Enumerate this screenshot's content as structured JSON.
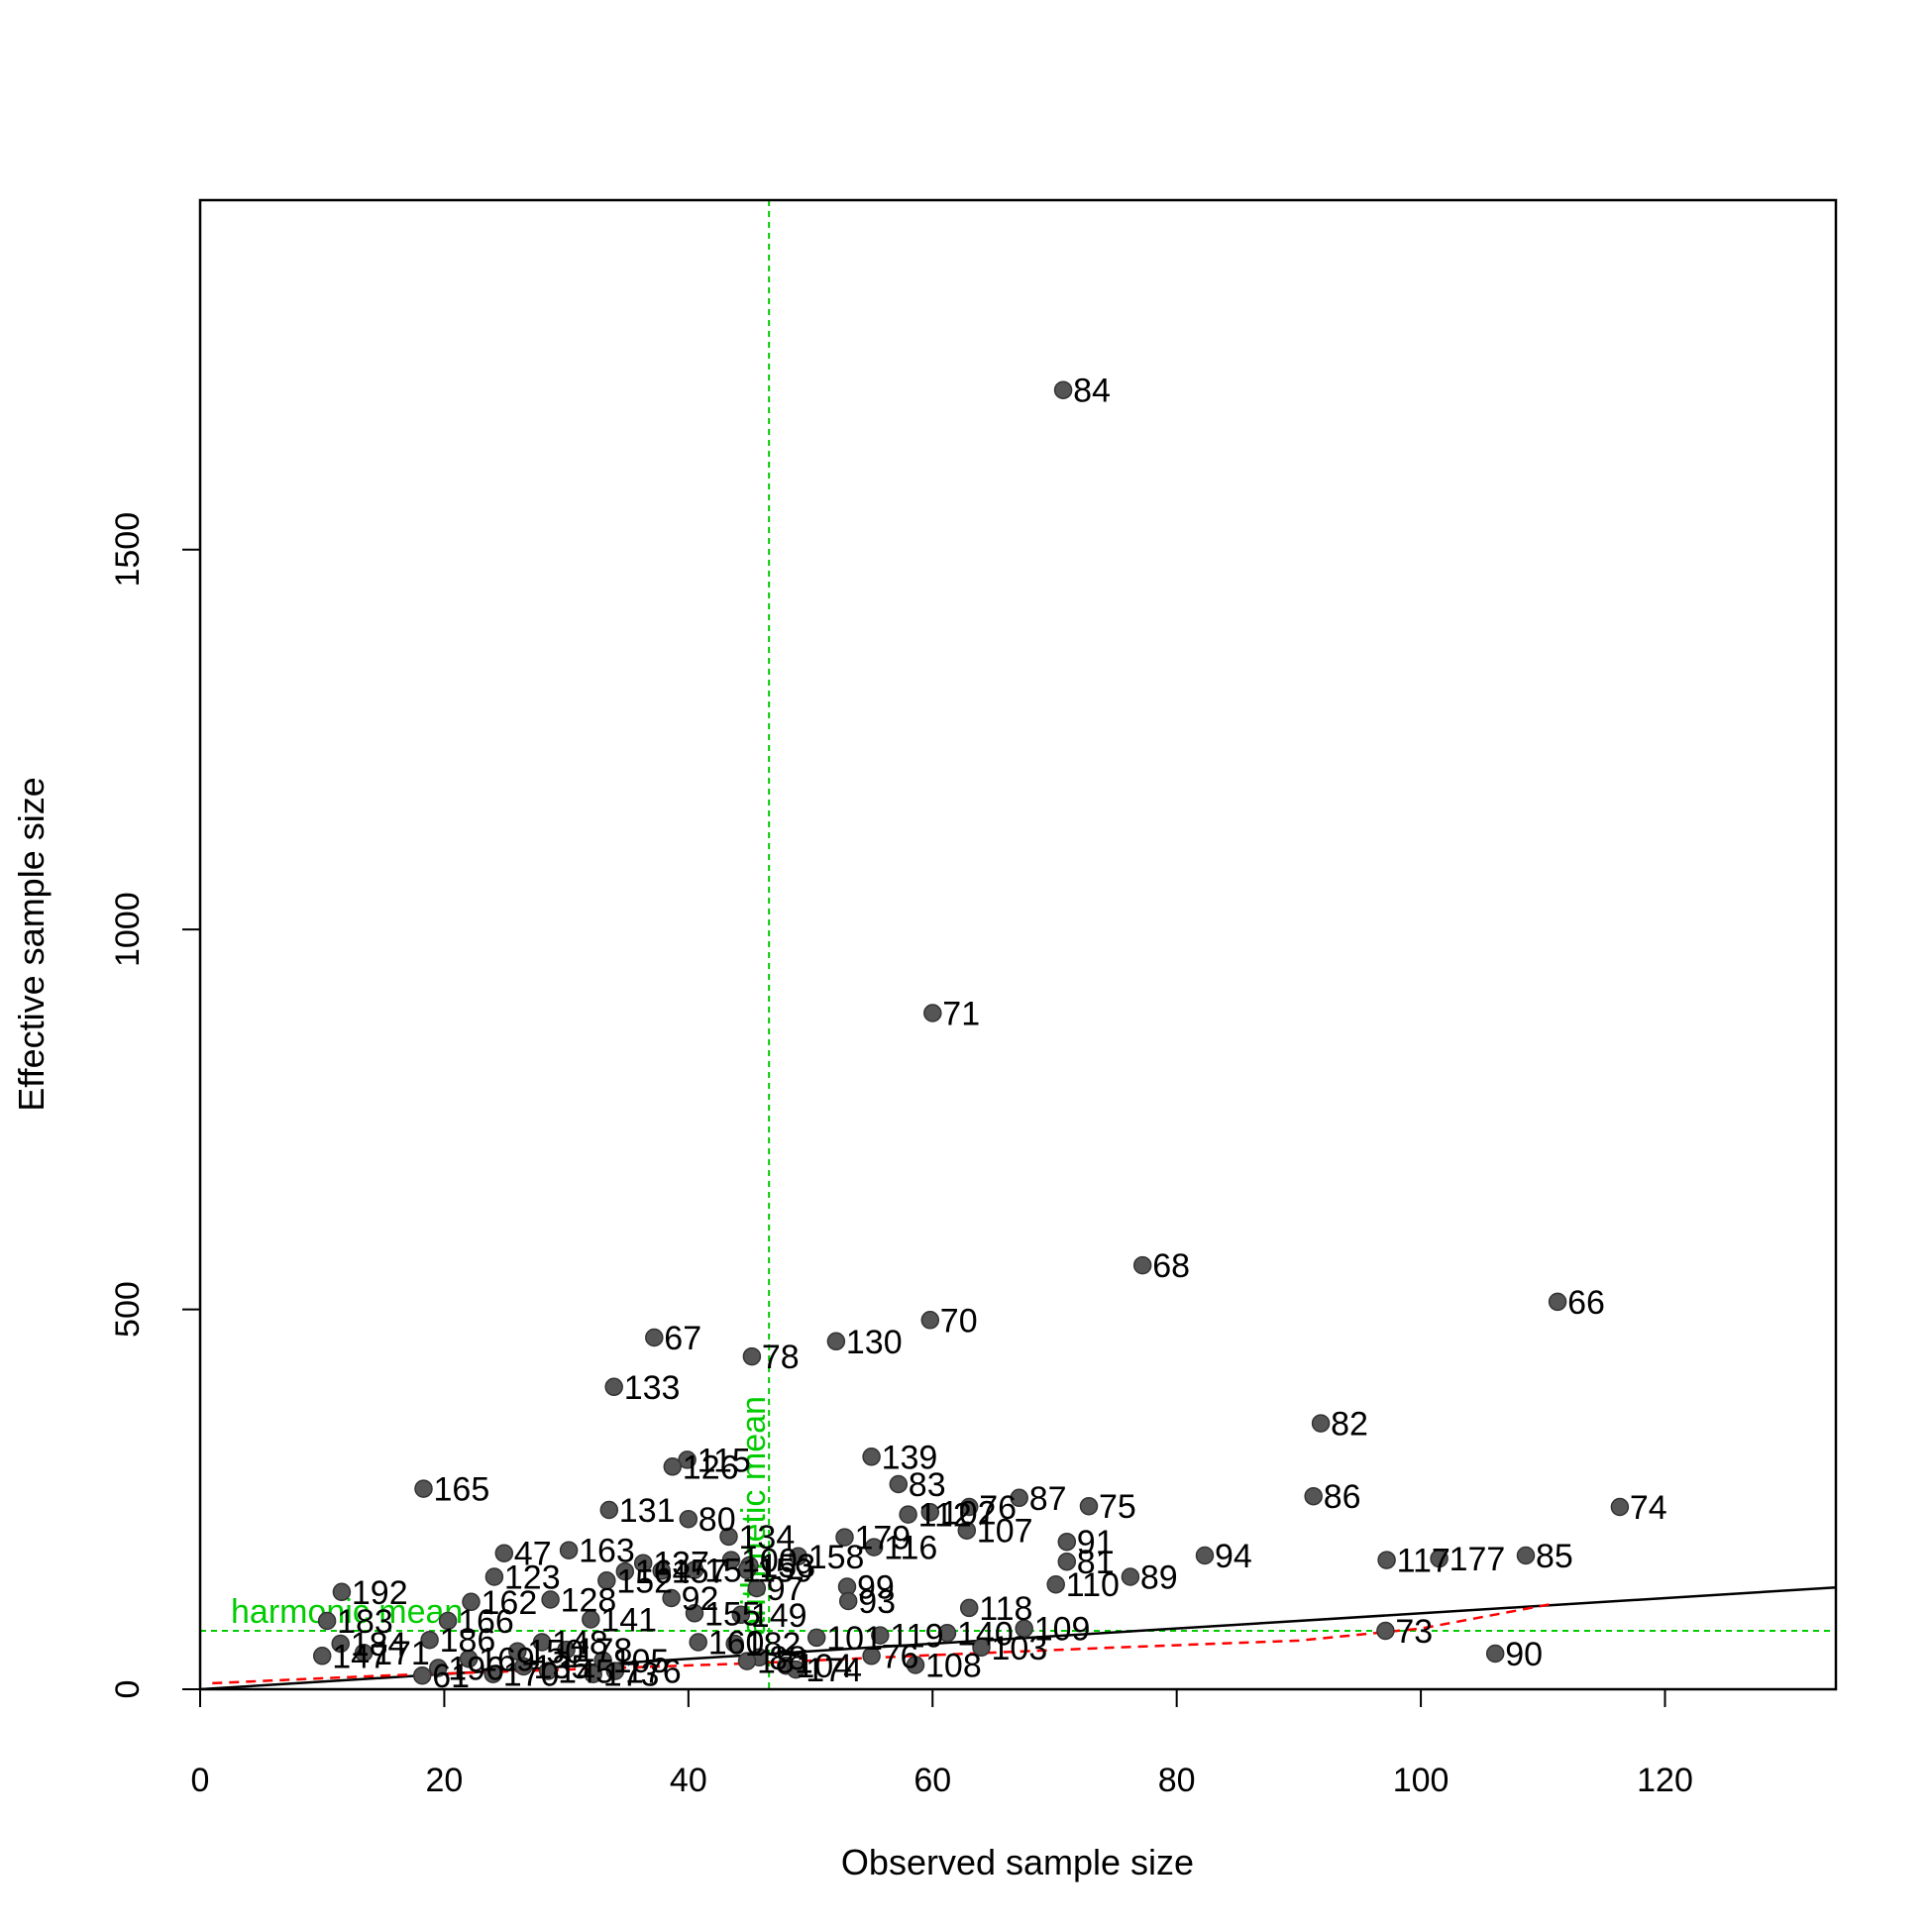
{
  "chart_data": {
    "type": "scatter",
    "title": "",
    "xlabel": "Observed sample size",
    "ylabel": "Effective sample size",
    "xlim": [
      0,
      134
    ],
    "ylim": [
      0,
      1960
    ],
    "xticks": [
      0,
      20,
      40,
      60,
      80,
      100,
      120
    ],
    "yticks": [
      0,
      500,
      1000,
      1500
    ],
    "grid": false,
    "point_color": "#555555",
    "reference_color": "#00cc00",
    "fit_line_color": "#ff0000",
    "reference_lines": {
      "arithmetic_mean": {
        "label": "arithmetic mean",
        "x": 46.6
      },
      "harmonic_mean": {
        "label": "harmonic mean",
        "y": 77
      }
    },
    "identity_line": {
      "x": [
        0,
        134
      ],
      "y": [
        0,
        134
      ]
    },
    "trend_line": {
      "x": [
        1,
        15,
        30,
        45,
        60,
        75,
        90,
        100,
        111
      ],
      "y": [
        8,
        18,
        26,
        34,
        45,
        55,
        64,
        80,
        113
      ]
    },
    "points": [
      {
        "id": "84",
        "x": 70.7,
        "y": 1710
      },
      {
        "id": "71",
        "x": 60.0,
        "y": 890
      },
      {
        "id": "68",
        "x": 77.2,
        "y": 558
      },
      {
        "id": "66",
        "x": 111.2,
        "y": 510
      },
      {
        "id": "70",
        "x": 59.8,
        "y": 486
      },
      {
        "id": "67",
        "x": 37.2,
        "y": 463
      },
      {
        "id": "130",
        "x": 52.1,
        "y": 458
      },
      {
        "id": "78",
        "x": 45.2,
        "y": 438
      },
      {
        "id": "133",
        "x": 33.9,
        "y": 398
      },
      {
        "id": "82",
        "x": 91.8,
        "y": 350
      },
      {
        "id": "139",
        "x": 55.0,
        "y": 306
      },
      {
        "id": "115",
        "x": 39.9,
        "y": 302
      },
      {
        "id": "126",
        "x": 38.7,
        "y": 293
      },
      {
        "id": "83",
        "x": 57.2,
        "y": 270
      },
      {
        "id": "165",
        "x": 18.3,
        "y": 264
      },
      {
        "id": "86",
        "x": 91.2,
        "y": 254
      },
      {
        "id": "87",
        "x": 67.1,
        "y": 252
      },
      {
        "id": "75",
        "x": 72.8,
        "y": 241
      },
      {
        "id": "74",
        "x": 116.3,
        "y": 240
      },
      {
        "id": "76",
        "x": 63.0,
        "y": 240
      },
      {
        "id": "131",
        "x": 33.5,
        "y": 236
      },
      {
        "id": "102",
        "x": 59.8,
        "y": 233
      },
      {
        "id": "112",
        "x": 58.0,
        "y": 230
      },
      {
        "id": "80",
        "x": 40.0,
        "y": 224
      },
      {
        "id": "107",
        "x": 62.8,
        "y": 209
      },
      {
        "id": "134",
        "x": 43.3,
        "y": 201
      },
      {
        "id": "179",
        "x": 52.8,
        "y": 200
      },
      {
        "id": "91",
        "x": 71.0,
        "y": 194
      },
      {
        "id": "116",
        "x": 55.2,
        "y": 187
      },
      {
        "id": "163",
        "x": 30.2,
        "y": 183
      },
      {
        "id": "47",
        "x": 24.9,
        "y": 179
      },
      {
        "id": "94",
        "x": 82.3,
        "y": 176
      },
      {
        "id": "85",
        "x": 108.6,
        "y": 176
      },
      {
        "id": "158",
        "x": 49.0,
        "y": 175
      },
      {
        "id": "177",
        "x": 101.5,
        "y": 172
      },
      {
        "id": "117",
        "x": 97.2,
        "y": 170
      },
      {
        "id": "100",
        "x": 43.5,
        "y": 170
      },
      {
        "id": "81",
        "x": 71.0,
        "y": 168
      },
      {
        "id": "137",
        "x": 36.3,
        "y": 166
      },
      {
        "id": "153",
        "x": 45.0,
        "y": 163
      },
      {
        "id": "159",
        "x": 44.8,
        "y": 157
      },
      {
        "id": "151",
        "x": 40.5,
        "y": 157
      },
      {
        "id": "157",
        "x": 37.8,
        "y": 156
      },
      {
        "id": "164",
        "x": 34.8,
        "y": 155
      },
      {
        "id": "123",
        "x": 24.1,
        "y": 148
      },
      {
        "id": "89",
        "x": 76.2,
        "y": 148
      },
      {
        "id": "152",
        "x": 33.3,
        "y": 143
      },
      {
        "id": "110",
        "x": 70.1,
        "y": 138
      },
      {
        "id": "99",
        "x": 53.0,
        "y": 135
      },
      {
        "id": "97",
        "x": 45.6,
        "y": 133
      },
      {
        "id": "192",
        "x": 11.6,
        "y": 128
      },
      {
        "id": "128",
        "x": 28.7,
        "y": 118
      },
      {
        "id": "162",
        "x": 22.2,
        "y": 115
      },
      {
        "id": "92",
        "x": 38.6,
        "y": 120
      },
      {
        "id": "93",
        "x": 53.1,
        "y": 116
      },
      {
        "id": "118",
        "x": 63.0,
        "y": 107
      },
      {
        "id": "155",
        "x": 40.5,
        "y": 100
      },
      {
        "id": "149",
        "x": 44.3,
        "y": 98
      },
      {
        "id": "141",
        "x": 32.0,
        "y": 92
      },
      {
        "id": "166",
        "x": 20.3,
        "y": 90
      },
      {
        "id": "183",
        "x": 10.4,
        "y": 90
      },
      {
        "id": "109",
        "x": 67.5,
        "y": 80
      },
      {
        "id": "73",
        "x": 97.1,
        "y": 77
      },
      {
        "id": "140",
        "x": 61.2,
        "y": 74
      },
      {
        "id": "119",
        "x": 55.7,
        "y": 71
      },
      {
        "id": "101",
        "x": 50.5,
        "y": 68
      },
      {
        "id": "186",
        "x": 18.8,
        "y": 65
      },
      {
        "id": "148",
        "x": 28.0,
        "y": 62
      },
      {
        "id": "160",
        "x": 40.8,
        "y": 62
      },
      {
        "id": "184",
        "x": 11.5,
        "y": 60
      },
      {
        "id": "182",
        "x": 43.8,
        "y": 60
      },
      {
        "id": "103",
        "x": 64.0,
        "y": 55
      },
      {
        "id": "178",
        "x": 30.0,
        "y": 52
      },
      {
        "id": "150",
        "x": 26.0,
        "y": 50
      },
      {
        "id": "171",
        "x": 13.4,
        "y": 48
      },
      {
        "id": "90",
        "x": 106.1,
        "y": 47
      },
      {
        "id": "76b",
        "x": 55.0,
        "y": 44
      },
      {
        "id": "147",
        "x": 10.0,
        "y": 44
      },
      {
        "id": "88",
        "x": 45.8,
        "y": 42
      },
      {
        "id": "169",
        "x": 22.0,
        "y": 40
      },
      {
        "id": "105",
        "x": 33.0,
        "y": 38
      },
      {
        "id": "181",
        "x": 44.8,
        "y": 37
      },
      {
        "id": "108",
        "x": 58.6,
        "y": 32
      },
      {
        "id": "104",
        "x": 48.0,
        "y": 31
      },
      {
        "id": "135",
        "x": 26.5,
        "y": 30
      },
      {
        "id": "196",
        "x": 19.5,
        "y": 28
      },
      {
        "id": "174",
        "x": 48.8,
        "y": 26
      },
      {
        "id": "176",
        "x": 34.0,
        "y": 24
      },
      {
        "id": "145",
        "x": 28.5,
        "y": 24
      },
      {
        "id": "173",
        "x": 32.2,
        "y": 20
      },
      {
        "id": "170",
        "x": 24.0,
        "y": 20
      },
      {
        "id": "61",
        "x": 18.2,
        "y": 18
      }
    ],
    "labels": [
      {
        "text": "84",
        "x": 70.7,
        "y": 1710
      },
      {
        "text": "71",
        "x": 60.0,
        "y": 890
      },
      {
        "text": "68",
        "x": 77.2,
        "y": 558
      },
      {
        "text": "66",
        "x": 111.2,
        "y": 510
      },
      {
        "text": "70",
        "x": 59.8,
        "y": 486
      },
      {
        "text": "67",
        "x": 37.2,
        "y": 463
      },
      {
        "text": "130",
        "x": 52.1,
        "y": 458
      },
      {
        "text": "78",
        "x": 45.2,
        "y": 438
      },
      {
        "text": "133",
        "x": 33.9,
        "y": 398
      },
      {
        "text": "82",
        "x": 91.8,
        "y": 350
      },
      {
        "text": "139",
        "x": 55.0,
        "y": 306
      },
      {
        "text": "115",
        "x": 39.9,
        "y": 302
      },
      {
        "text": "126",
        "x": 38.7,
        "y": 293
      },
      {
        "text": "83",
        "x": 57.2,
        "y": 270
      },
      {
        "text": "165",
        "x": 18.3,
        "y": 264
      },
      {
        "text": "86",
        "x": 91.2,
        "y": 254
      },
      {
        "text": "87",
        "x": 67.1,
        "y": 252
      },
      {
        "text": "75",
        "x": 72.8,
        "y": 241
      },
      {
        "text": "74",
        "x": 116.3,
        "y": 240
      },
      {
        "text": "76",
        "x": 63.0,
        "y": 240
      },
      {
        "text": "131",
        "x": 33.5,
        "y": 236
      },
      {
        "text": "102",
        "x": 59.8,
        "y": 233
      },
      {
        "text": "112",
        "x": 58.0,
        "y": 230
      },
      {
        "text": "80",
        "x": 40.0,
        "y": 224
      },
      {
        "text": "107",
        "x": 62.8,
        "y": 209
      },
      {
        "text": "134",
        "x": 43.3,
        "y": 201
      },
      {
        "text": "179",
        "x": 52.8,
        "y": 200
      },
      {
        "text": "91",
        "x": 71.0,
        "y": 194
      },
      {
        "text": "116",
        "x": 55.2,
        "y": 187
      },
      {
        "text": "163",
        "x": 30.2,
        "y": 183
      },
      {
        "text": "47",
        "x": 24.9,
        "y": 179
      },
      {
        "text": "94",
        "x": 82.3,
        "y": 176
      },
      {
        "text": "85",
        "x": 108.6,
        "y": 176
      },
      {
        "text": "158",
        "x": 49.0,
        "y": 175
      },
      {
        "text": "177",
        "x": 101.5,
        "y": 172
      },
      {
        "text": "117",
        "x": 97.2,
        "y": 170
      },
      {
        "text": "100",
        "x": 43.5,
        "y": 170
      },
      {
        "text": "81",
        "x": 71.0,
        "y": 168
      },
      {
        "text": "137",
        "x": 36.3,
        "y": 166
      },
      {
        "text": "153",
        "x": 45.0,
        "y": 163
      },
      {
        "text": "159",
        "x": 44.8,
        "y": 157
      },
      {
        "text": "151",
        "x": 40.5,
        "y": 157
      },
      {
        "text": "157",
        "x": 37.8,
        "y": 156
      },
      {
        "text": "164",
        "x": 34.8,
        "y": 155
      },
      {
        "text": "123",
        "x": 24.1,
        "y": 148
      },
      {
        "text": "89",
        "x": 76.2,
        "y": 148
      },
      {
        "text": "152",
        "x": 33.3,
        "y": 143
      },
      {
        "text": "110",
        "x": 70.1,
        "y": 138
      },
      {
        "text": "99",
        "x": 53.0,
        "y": 135
      },
      {
        "text": "97",
        "x": 45.6,
        "y": 133
      },
      {
        "text": "192",
        "x": 11.6,
        "y": 128
      },
      {
        "text": "128",
        "x": 28.7,
        "y": 118
      },
      {
        "text": "162",
        "x": 22.2,
        "y": 115
      },
      {
        "text": "92",
        "x": 38.6,
        "y": 120
      },
      {
        "text": "93",
        "x": 53.1,
        "y": 116
      },
      {
        "text": "118",
        "x": 63.0,
        "y": 107
      },
      {
        "text": "155",
        "x": 40.5,
        "y": 100
      },
      {
        "text": "149",
        "x": 44.3,
        "y": 98
      },
      {
        "text": "141",
        "x": 32.0,
        "y": 92
      },
      {
        "text": "166",
        "x": 20.3,
        "y": 90
      },
      {
        "text": "183",
        "x": 10.4,
        "y": 90
      },
      {
        "text": "109",
        "x": 67.5,
        "y": 80
      },
      {
        "text": "73",
        "x": 97.1,
        "y": 77
      },
      {
        "text": "140",
        "x": 61.2,
        "y": 74
      },
      {
        "text": "119",
        "x": 55.7,
        "y": 71
      },
      {
        "text": "101",
        "x": 50.5,
        "y": 68
      },
      {
        "text": "186",
        "x": 18.8,
        "y": 65
      },
      {
        "text": "148",
        "x": 28.0,
        "y": 62
      },
      {
        "text": "160",
        "x": 40.8,
        "y": 62
      },
      {
        "text": "184",
        "x": 11.5,
        "y": 60
      },
      {
        "text": "182",
        "x": 43.8,
        "y": 60
      },
      {
        "text": "103",
        "x": 64.0,
        "y": 55
      },
      {
        "text": "178",
        "x": 30.0,
        "y": 52
      },
      {
        "text": "150",
        "x": 26.0,
        "y": 50
      },
      {
        "text": "171",
        "x": 13.4,
        "y": 48
      },
      {
        "text": "90",
        "x": 106.1,
        "y": 47
      },
      {
        "text": "76",
        "x": 55.0,
        "y": 44
      },
      {
        "text": "147",
        "x": 10.0,
        "y": 44
      },
      {
        "text": "88",
        "x": 45.8,
        "y": 42
      },
      {
        "text": "169",
        "x": 22.0,
        "y": 40
      },
      {
        "text": "105",
        "x": 33.0,
        "y": 38
      },
      {
        "text": "181",
        "x": 44.8,
        "y": 37
      },
      {
        "text": "108",
        "x": 58.6,
        "y": 32
      },
      {
        "text": "104",
        "x": 48.0,
        "y": 31
      },
      {
        "text": "135",
        "x": 26.5,
        "y": 30
      },
      {
        "text": "196",
        "x": 19.5,
        "y": 28
      },
      {
        "text": "174",
        "x": 48.8,
        "y": 26
      },
      {
        "text": "176",
        "x": 34.0,
        "y": 24
      },
      {
        "text": "145",
        "x": 28.5,
        "y": 24
      },
      {
        "text": "173",
        "x": 32.2,
        "y": 20
      },
      {
        "text": "170",
        "x": 24.0,
        "y": 20
      },
      {
        "text": "61",
        "x": 18.2,
        "y": 18
      }
    ]
  }
}
